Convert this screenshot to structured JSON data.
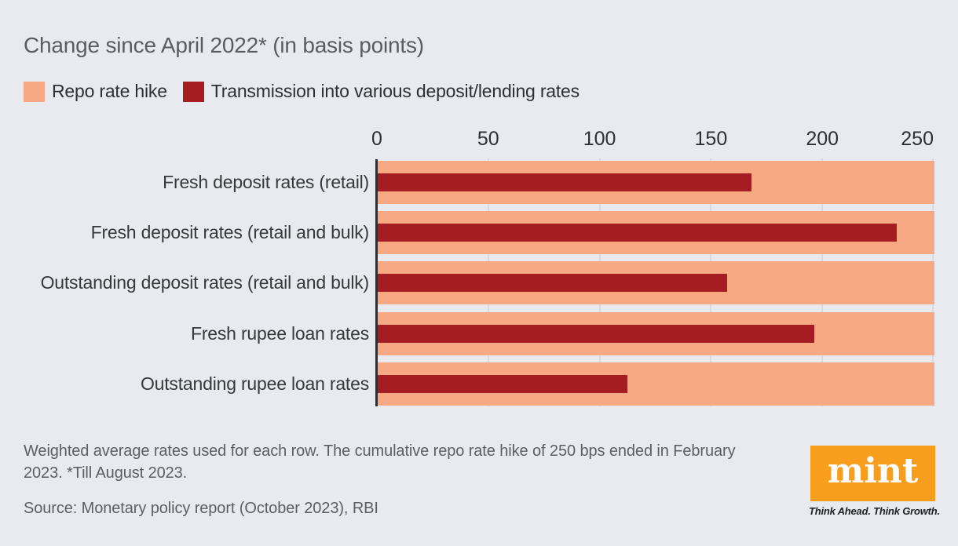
{
  "title": "Change since April 2022* (in basis points)",
  "legend": [
    {
      "label": "Repo rate hike",
      "color": "#F7A983"
    },
    {
      "label": "Transmission into various deposit/lending rates",
      "color": "#A51D21"
    }
  ],
  "chart_data": {
    "type": "bar",
    "orientation": "horizontal",
    "title": "Change since April 2022* (in basis points)",
    "categories": [
      "Fresh deposit rates (retail)",
      "Fresh deposit rates (retail and bulk)",
      "Outstanding deposit rates (retail and bulk)",
      "Fresh rupee loan rates",
      "Outstanding rupee loan rates"
    ],
    "series": [
      {
        "name": "Repo rate hike",
        "color": "#F7A983",
        "values": [
          250,
          250,
          250,
          250,
          250
        ]
      },
      {
        "name": "Transmission into various deposit/lending rates",
        "color": "#A51D21",
        "values": [
          168,
          233,
          157,
          196,
          112
        ]
      }
    ],
    "xlim": [
      0,
      250
    ],
    "xticks": [
      0,
      50,
      100,
      150,
      200,
      250
    ],
    "grid": true,
    "legend_position": "top",
    "unit": "basis points"
  },
  "footnote": {
    "text": "Weighted average rates used for each row. The cumulative repo rate hike of 250 bps ended in February 2023. *Till August 2023.",
    "source": "Source: Monetary policy report (October 2023), RBI"
  },
  "branding": {
    "logo_text": "mint",
    "tagline": "Think Ahead. Think Growth.",
    "logo_color": "#F99D1C"
  },
  "colors": {
    "background": "#E9EAF0",
    "grid": "#D8DADF",
    "axis": "#2E2E30",
    "title_text": "#5B5C61",
    "label_text": "#37383A",
    "footnote_text": "#5A5F66"
  }
}
